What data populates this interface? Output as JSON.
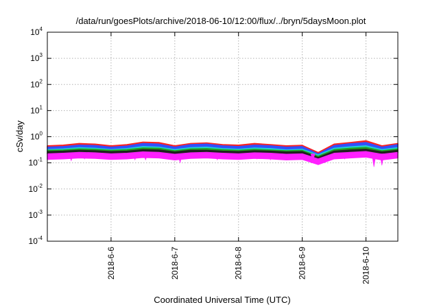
{
  "chart_data": {
    "type": "area",
    "title": "/data/run/goesPlots/archive/2018-06-10/12:00/flux/../bryn/5daysMoon.plot",
    "xlabel": "Coordinated Universal Time (UTC)",
    "ylabel": "cSv/day",
    "yscale": "log",
    "ylim": [
      0.0001,
      10000
    ],
    "y_ticks": [
      {
        "base": "10",
        "exp": "-4",
        "value": 0.0001
      },
      {
        "base": "10",
        "exp": "-3",
        "value": 0.001
      },
      {
        "base": "10",
        "exp": "-2",
        "value": 0.01
      },
      {
        "base": "10",
        "exp": "-1",
        "value": 0.1
      },
      {
        "base": "10",
        "exp": "0",
        "value": 1
      },
      {
        "base": "10",
        "exp": "1",
        "value": 10
      },
      {
        "base": "10",
        "exp": "2",
        "value": 100
      },
      {
        "base": "10",
        "exp": "3",
        "value": 1000
      },
      {
        "base": "10",
        "exp": "4",
        "value": 10000
      }
    ],
    "x_range": [
      "2018-06-05T00:00",
      "2018-06-10T12:00"
    ],
    "x_ticks": [
      "2018-6-6",
      "2018-6-7",
      "2018-6-8",
      "2018-6-9",
      "2018-6-10"
    ],
    "grid": true,
    "x": [
      "2018-06-05T00:00",
      "2018-06-05T06:00",
      "2018-06-05T12:00",
      "2018-06-05T18:00",
      "2018-06-06T00:00",
      "2018-06-06T06:00",
      "2018-06-06T12:00",
      "2018-06-06T18:00",
      "2018-06-07T00:00",
      "2018-06-07T06:00",
      "2018-06-07T12:00",
      "2018-06-07T18:00",
      "2018-06-08T00:00",
      "2018-06-08T06:00",
      "2018-06-08T12:00",
      "2018-06-08T18:00",
      "2018-06-09T00:00",
      "2018-06-09T06:00",
      "2018-06-09T12:00",
      "2018-06-09T18:00",
      "2018-06-10T00:00",
      "2018-06-10T06:00",
      "2018-06-10T12:00"
    ],
    "series": [
      {
        "color": "#ff2020",
        "values": [
          0.45,
          0.48,
          0.55,
          0.52,
          0.45,
          0.5,
          0.62,
          0.6,
          0.45,
          0.55,
          0.58,
          0.5,
          0.48,
          0.55,
          0.5,
          0.45,
          0.47,
          0.25,
          0.52,
          0.6,
          0.7,
          0.45,
          0.55
        ]
      },
      {
        "color": "#3050ff",
        "values": [
          0.4,
          0.42,
          0.48,
          0.46,
          0.4,
          0.44,
          0.55,
          0.52,
          0.4,
          0.5,
          0.52,
          0.45,
          0.42,
          0.48,
          0.45,
          0.4,
          0.42,
          0.22,
          0.46,
          0.54,
          0.6,
          0.4,
          0.5
        ]
      },
      {
        "color": "#20d0d0",
        "values": [
          0.32,
          0.34,
          0.38,
          0.36,
          0.32,
          0.35,
          0.42,
          0.4,
          0.32,
          0.38,
          0.4,
          0.35,
          0.33,
          0.37,
          0.35,
          0.31,
          0.33,
          0.2,
          0.36,
          0.41,
          0.45,
          0.32,
          0.38
        ]
      },
      {
        "color": "#20a020",
        "values": [
          0.3,
          0.31,
          0.34,
          0.33,
          0.3,
          0.32,
          0.37,
          0.36,
          0.29,
          0.34,
          0.35,
          0.32,
          0.3,
          0.33,
          0.31,
          0.29,
          0.3,
          0.18,
          0.32,
          0.36,
          0.39,
          0.29,
          0.34
        ]
      },
      {
        "color": "#202020",
        "values": [
          0.27,
          0.28,
          0.3,
          0.29,
          0.27,
          0.28,
          0.32,
          0.31,
          0.26,
          0.3,
          0.3,
          0.28,
          0.27,
          0.29,
          0.28,
          0.26,
          0.27,
          0.16,
          0.28,
          0.31,
          0.33,
          0.26,
          0.3
        ]
      },
      {
        "color": "#ff20ff",
        "values": [
          0.22,
          0.23,
          0.25,
          0.24,
          0.22,
          0.23,
          0.26,
          0.25,
          0.21,
          0.24,
          0.25,
          0.23,
          0.22,
          0.24,
          0.23,
          0.21,
          0.22,
          0.14,
          0.23,
          0.25,
          0.27,
          0.21,
          0.25
        ]
      }
    ],
    "dips": [
      {
        "x": "2018-06-05T09:00",
        "value": 0.12
      },
      {
        "x": "2018-06-05T14:00",
        "value": 0.14
      },
      {
        "x": "2018-06-06T09:00",
        "value": 0.13
      },
      {
        "x": "2018-06-06T13:00",
        "value": 0.13
      },
      {
        "x": "2018-06-06T16:00",
        "value": 0.16
      },
      {
        "x": "2018-06-07T02:00",
        "value": 0.1
      },
      {
        "x": "2018-06-07T16:00",
        "value": 0.13
      },
      {
        "x": "2018-06-08T07:00",
        "value": 0.14
      },
      {
        "x": "2018-06-08T12:00",
        "value": 0.13
      },
      {
        "x": "2018-06-08T16:00",
        "value": 0.15
      },
      {
        "x": "2018-06-09T04:00",
        "value": 0.12
      },
      {
        "x": "2018-06-09T16:00",
        "value": 0.14
      },
      {
        "x": "2018-06-10T03:00",
        "value": 0.07
      },
      {
        "x": "2018-06-10T06:00",
        "value": 0.08
      }
    ]
  }
}
